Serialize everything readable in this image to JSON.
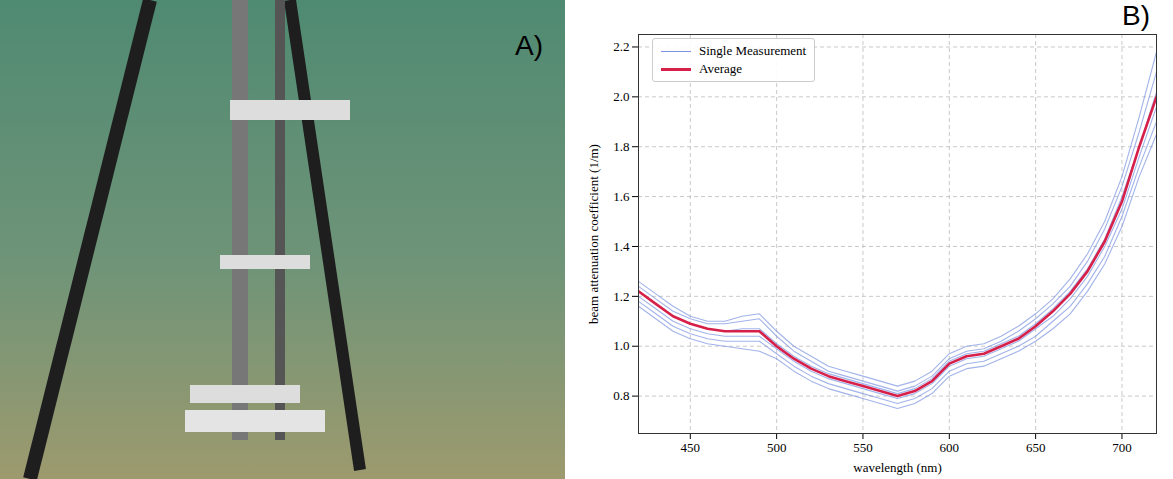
{
  "photo": {
    "label": "A)"
  },
  "chart_data": {
    "type": "line",
    "annotations": [
      "B)"
    ],
    "x_label": "wavelength (nm)",
    "y_label": "beam attenuation coefficient (1/m)",
    "x": [
      420,
      430,
      440,
      450,
      460,
      470,
      480,
      490,
      500,
      510,
      520,
      530,
      540,
      550,
      560,
      570,
      580,
      590,
      600,
      610,
      620,
      630,
      640,
      650,
      660,
      670,
      680,
      690,
      700,
      710,
      720
    ],
    "series": [
      {
        "name": "Single Measurement",
        "color": "#7b93e0",
        "values": [
          1.26,
          1.21,
          1.16,
          1.12,
          1.1,
          1.1,
          1.12,
          1.13,
          1.06,
          1.0,
          0.96,
          0.92,
          0.9,
          0.88,
          0.86,
          0.84,
          0.86,
          0.9,
          0.97,
          1.0,
          1.01,
          1.04,
          1.08,
          1.13,
          1.19,
          1.27,
          1.37,
          1.5,
          1.68,
          1.92,
          2.18
        ]
      },
      {
        "name": "Single Measurement",
        "color": "#7b93e0",
        "values": [
          1.24,
          1.19,
          1.14,
          1.11,
          1.09,
          1.09,
          1.1,
          1.11,
          1.04,
          0.98,
          0.94,
          0.9,
          0.88,
          0.86,
          0.84,
          0.82,
          0.84,
          0.88,
          0.95,
          0.98,
          0.99,
          1.02,
          1.06,
          1.11,
          1.17,
          1.24,
          1.34,
          1.47,
          1.64,
          1.86,
          2.1
        ]
      },
      {
        "name": "Single Measurement",
        "color": "#7b93e0",
        "values": [
          1.22,
          1.17,
          1.12,
          1.09,
          1.07,
          1.06,
          1.07,
          1.07,
          1.01,
          0.96,
          0.92,
          0.89,
          0.87,
          0.85,
          0.83,
          0.81,
          0.83,
          0.87,
          0.94,
          0.97,
          0.98,
          1.01,
          1.04,
          1.09,
          1.15,
          1.22,
          1.31,
          1.43,
          1.6,
          1.8,
          2.02
        ]
      },
      {
        "name": "Single Measurement",
        "color": "#7b93e0",
        "values": [
          1.2,
          1.15,
          1.1,
          1.07,
          1.05,
          1.04,
          1.04,
          1.04,
          0.99,
          0.94,
          0.9,
          0.87,
          0.85,
          0.83,
          0.81,
          0.79,
          0.81,
          0.85,
          0.92,
          0.95,
          0.96,
          0.99,
          1.02,
          1.07,
          1.12,
          1.19,
          1.28,
          1.4,
          1.55,
          1.76,
          1.96
        ]
      },
      {
        "name": "Single Measurement",
        "color": "#7b93e0",
        "values": [
          1.18,
          1.13,
          1.08,
          1.05,
          1.03,
          1.02,
          1.02,
          1.02,
          0.97,
          0.92,
          0.88,
          0.85,
          0.83,
          0.81,
          0.79,
          0.77,
          0.79,
          0.83,
          0.9,
          0.93,
          0.94,
          0.97,
          1.0,
          1.04,
          1.1,
          1.16,
          1.25,
          1.36,
          1.52,
          1.72,
          1.9
        ]
      },
      {
        "name": "Single Measurement",
        "color": "#7b93e0",
        "values": [
          1.16,
          1.11,
          1.06,
          1.03,
          1.01,
          1.0,
          0.99,
          0.98,
          0.95,
          0.9,
          0.86,
          0.83,
          0.81,
          0.79,
          0.77,
          0.75,
          0.77,
          0.81,
          0.88,
          0.91,
          0.92,
          0.95,
          0.98,
          1.02,
          1.07,
          1.13,
          1.22,
          1.33,
          1.48,
          1.68,
          1.85
        ]
      },
      {
        "name": "Average",
        "color": "#d6204a",
        "values": [
          1.22,
          1.17,
          1.12,
          1.09,
          1.07,
          1.06,
          1.06,
          1.06,
          1.0,
          0.95,
          0.91,
          0.88,
          0.86,
          0.84,
          0.82,
          0.8,
          0.82,
          0.86,
          0.93,
          0.96,
          0.97,
          1.0,
          1.03,
          1.08,
          1.14,
          1.21,
          1.3,
          1.42,
          1.58,
          1.8,
          2.0
        ]
      }
    ],
    "xlim": [
      420,
      720
    ],
    "xticks": [
      450,
      500,
      550,
      600,
      650,
      700
    ],
    "ylim": [
      0.65,
      2.25
    ],
    "yticks": [
      0.8,
      {
        "value": 1,
        "label": "1.0"
      },
      1.2,
      1.4,
      1.6,
      1.8,
      {
        "value": 2,
        "label": "2.0"
      },
      2.2
    ],
    "grid": true,
    "legend": "upper left"
  }
}
